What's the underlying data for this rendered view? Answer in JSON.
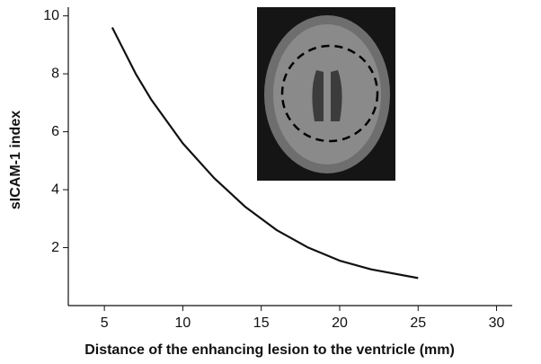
{
  "chart_data": {
    "type": "line",
    "x_label": "Distance of the enhancing lesion to the ventricle (mm)",
    "y_label": "sICAM-1 index",
    "x": [
      5.5,
      7,
      8,
      10,
      12,
      14,
      16,
      18,
      20,
      22,
      25
    ],
    "series": [
      {
        "color": "#111111",
        "values": [
          9.6,
          8.0,
          7.1,
          5.6,
          4.4,
          3.4,
          2.6,
          2.0,
          1.55,
          1.25,
          0.95
        ]
      }
    ],
    "xlim": [
      2.7,
      31
    ],
    "xticks": [
      5,
      10,
      15,
      20,
      25,
      30
    ],
    "ylim": [
      0,
      10.3
    ],
    "yticks": [
      2,
      4,
      6,
      8,
      10
    ]
  }
}
